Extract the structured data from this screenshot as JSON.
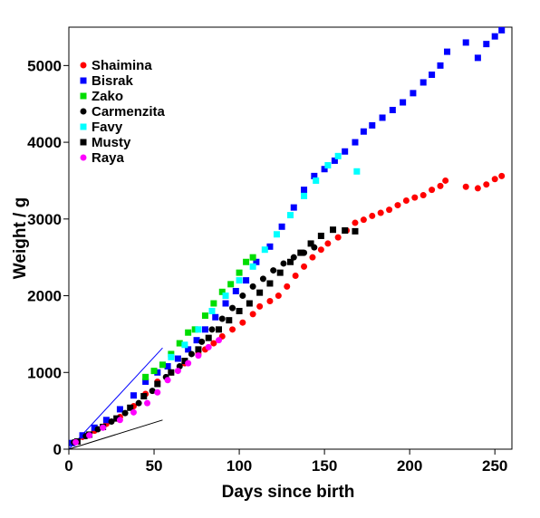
{
  "chart_data": {
    "type": "scatter",
    "title": "",
    "xlabel": "Days since birth",
    "ylabel": "Weight / g",
    "xlim": [
      0,
      260
    ],
    "ylim": [
      0,
      5500
    ],
    "xticks": [
      0,
      50,
      100,
      150,
      200,
      250
    ],
    "yticks": [
      0,
      1000,
      2000,
      3000,
      4000,
      5000
    ],
    "grid": false,
    "legend_position": "top-left",
    "series": [
      {
        "name": "Shaimina",
        "color": "#ff0000",
        "marker": "circle",
        "points": [
          [
            2,
            80
          ],
          [
            8,
            160
          ],
          [
            15,
            240
          ],
          [
            22,
            330
          ],
          [
            30,
            420
          ],
          [
            38,
            560
          ],
          [
            45,
            720
          ],
          [
            52,
            880
          ],
          [
            60,
            1000
          ],
          [
            68,
            1120
          ],
          [
            76,
            1240
          ],
          [
            80,
            1300
          ],
          [
            85,
            1380
          ],
          [
            90,
            1470
          ],
          [
            96,
            1560
          ],
          [
            102,
            1650
          ],
          [
            108,
            1760
          ],
          [
            112,
            1860
          ],
          [
            118,
            1930
          ],
          [
            123,
            2000
          ],
          [
            128,
            2120
          ],
          [
            133,
            2260
          ],
          [
            138,
            2380
          ],
          [
            143,
            2500
          ],
          [
            148,
            2600
          ],
          [
            152,
            2680
          ],
          [
            158,
            2760
          ],
          [
            163,
            2850
          ],
          [
            168,
            2950
          ],
          [
            173,
            2990
          ],
          [
            178,
            3040
          ],
          [
            183,
            3080
          ],
          [
            188,
            3120
          ],
          [
            193,
            3180
          ],
          [
            198,
            3240
          ],
          [
            203,
            3280
          ],
          [
            208,
            3310
          ],
          [
            213,
            3380
          ],
          [
            218,
            3430
          ],
          [
            221,
            3500
          ],
          [
            233,
            3420
          ],
          [
            240,
            3400
          ],
          [
            245,
            3450
          ],
          [
            250,
            3520
          ],
          [
            254,
            3560
          ]
        ]
      },
      {
        "name": "Bisrak",
        "color": "#0000ff",
        "marker": "square",
        "points": [
          [
            2,
            80
          ],
          [
            8,
            180
          ],
          [
            15,
            280
          ],
          [
            22,
            380
          ],
          [
            30,
            520
          ],
          [
            38,
            700
          ],
          [
            45,
            880
          ],
          [
            52,
            1000
          ],
          [
            58,
            1080
          ],
          [
            64,
            1180
          ],
          [
            70,
            1300
          ],
          [
            75,
            1420
          ],
          [
            80,
            1560
          ],
          [
            86,
            1720
          ],
          [
            92,
            1900
          ],
          [
            98,
            2060
          ],
          [
            104,
            2200
          ],
          [
            110,
            2440
          ],
          [
            118,
            2640
          ],
          [
            125,
            2900
          ],
          [
            132,
            3150
          ],
          [
            138,
            3380
          ],
          [
            144,
            3560
          ],
          [
            150,
            3650
          ],
          [
            156,
            3760
          ],
          [
            162,
            3880
          ],
          [
            168,
            4000
          ],
          [
            173,
            4140
          ],
          [
            178,
            4220
          ],
          [
            184,
            4320
          ],
          [
            190,
            4420
          ],
          [
            196,
            4520
          ],
          [
            202,
            4640
          ],
          [
            208,
            4780
          ],
          [
            213,
            4880
          ],
          [
            218,
            5000
          ],
          [
            222,
            5180
          ],
          [
            233,
            5300
          ],
          [
            240,
            5100
          ],
          [
            245,
            5280
          ],
          [
            250,
            5380
          ],
          [
            254,
            5460
          ]
        ]
      },
      {
        "name": "Zako",
        "color": "#00dd00",
        "marker": "square",
        "points": [
          [
            45,
            940
          ],
          [
            50,
            1020
          ],
          [
            55,
            1100
          ],
          [
            60,
            1240
          ],
          [
            65,
            1380
          ],
          [
            70,
            1520
          ],
          [
            74,
            1560
          ],
          [
            80,
            1740
          ],
          [
            85,
            1900
          ],
          [
            90,
            2050
          ],
          [
            95,
            2150
          ],
          [
            100,
            2300
          ],
          [
            104,
            2440
          ],
          [
            108,
            2500
          ]
        ]
      },
      {
        "name": "Carmenzita",
        "color": "#000000",
        "marker": "circle",
        "points": [
          [
            3,
            90
          ],
          [
            10,
            170
          ],
          [
            17,
            260
          ],
          [
            25,
            360
          ],
          [
            33,
            470
          ],
          [
            41,
            600
          ],
          [
            49,
            760
          ],
          [
            57,
            940
          ],
          [
            65,
            1080
          ],
          [
            72,
            1240
          ],
          [
            78,
            1400
          ],
          [
            84,
            1560
          ],
          [
            90,
            1700
          ],
          [
            96,
            1840
          ],
          [
            102,
            2000
          ],
          [
            108,
            2120
          ],
          [
            114,
            2220
          ],
          [
            120,
            2330
          ],
          [
            126,
            2420
          ],
          [
            132,
            2500
          ],
          [
            138,
            2560
          ],
          [
            144,
            2630
          ]
        ]
      },
      {
        "name": "Favy",
        "color": "#00ffff",
        "marker": "square",
        "points": [
          [
            60,
            1200
          ],
          [
            68,
            1360
          ],
          [
            76,
            1560
          ],
          [
            84,
            1800
          ],
          [
            92,
            2000
          ],
          [
            100,
            2200
          ],
          [
            108,
            2380
          ],
          [
            115,
            2600
          ],
          [
            122,
            2800
          ],
          [
            130,
            3050
          ],
          [
            138,
            3300
          ],
          [
            145,
            3500
          ],
          [
            152,
            3700
          ],
          [
            158,
            3820
          ],
          [
            169,
            3620
          ]
        ]
      },
      {
        "name": "Musty",
        "color": "#000000",
        "marker": "square",
        "points": [
          [
            5,
            100
          ],
          [
            12,
            190
          ],
          [
            20,
            290
          ],
          [
            28,
            400
          ],
          [
            36,
            540
          ],
          [
            44,
            690
          ],
          [
            52,
            850
          ],
          [
            60,
            1000
          ],
          [
            68,
            1150
          ],
          [
            76,
            1300
          ],
          [
            82,
            1450
          ],
          [
            88,
            1560
          ],
          [
            94,
            1680
          ],
          [
            100,
            1800
          ],
          [
            106,
            1900
          ],
          [
            112,
            2040
          ],
          [
            118,
            2160
          ],
          [
            124,
            2300
          ],
          [
            130,
            2440
          ],
          [
            136,
            2560
          ],
          [
            142,
            2680
          ],
          [
            148,
            2780
          ],
          [
            155,
            2860
          ],
          [
            162,
            2850
          ],
          [
            168,
            2840
          ]
        ]
      },
      {
        "name": "Raya",
        "color": "#ff00ff",
        "marker": "circle",
        "points": [
          [
            4,
            90
          ],
          [
            12,
            180
          ],
          [
            20,
            280
          ],
          [
            30,
            380
          ],
          [
            38,
            480
          ],
          [
            46,
            600
          ],
          [
            52,
            740
          ],
          [
            58,
            900
          ],
          [
            64,
            1020
          ],
          [
            70,
            1120
          ],
          [
            76,
            1220
          ],
          [
            82,
            1330
          ],
          [
            88,
            1420
          ]
        ]
      }
    ],
    "reference_lines": [
      {
        "color": "#0000ff",
        "points": [
          [
            0,
            0
          ],
          [
            55,
            1320
          ]
        ]
      },
      {
        "color": "#000000",
        "points": [
          [
            0,
            0
          ],
          [
            55,
            380
          ]
        ]
      }
    ]
  }
}
